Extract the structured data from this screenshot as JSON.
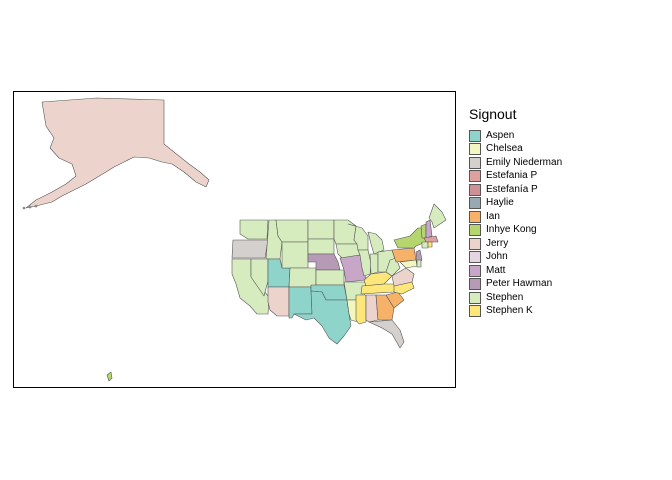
{
  "legend": {
    "title": "Signout",
    "items": [
      {
        "label": "Aspen",
        "color": "#8fd4cb"
      },
      {
        "label": "Chelsea",
        "color": "#f2f7c1"
      },
      {
        "label": "Emily Niederman",
        "color": "#d3d0cd"
      },
      {
        "label": "Estefania P",
        "color": "#dfa0a0"
      },
      {
        "label": "Estefanía P",
        "color": "#cf8f96"
      },
      {
        "label": "Haylie",
        "color": "#97aab4"
      },
      {
        "label": "Ian",
        "color": "#f7b26a"
      },
      {
        "label": "Inhye Kong",
        "color": "#b5d56f"
      },
      {
        "label": "Jerry",
        "color": "#ecd3cb"
      },
      {
        "label": "John",
        "color": "#e3d5e1"
      },
      {
        "label": "Matt",
        "color": "#c7a6c8"
      },
      {
        "label": "Peter Hawman",
        "color": "#b79ab6"
      },
      {
        "label": "Stephen",
        "color": "#d6ecbf"
      },
      {
        "label": "Stephen K",
        "color": "#fde77a"
      }
    ]
  },
  "map": {
    "border_color": "#555555",
    "regions": {
      "alaska": "Jerry",
      "hawaii": "Inhye Kong",
      "washington": "Stephen",
      "oregon": "Emily Niederman",
      "california": "Stephen",
      "idaho": "Stephen",
      "nevada": "Stephen",
      "utah": "Aspen",
      "arizona": "Jerry",
      "montana": "Stephen",
      "wyoming": "Stephen",
      "colorado": "Stephen",
      "new_mexico": "Aspen",
      "north_dakota": "Stephen",
      "south_dakota": "Stephen",
      "nebraska": "Peter Hawman",
      "kansas": "Stephen",
      "oklahoma": "Aspen",
      "texas": "Aspen",
      "minnesota": "Stephen",
      "iowa": "Stephen",
      "missouri": "Matt",
      "arkansas": "Stephen",
      "louisiana": "Chelsea",
      "wisconsin": "Stephen",
      "illinois": "Stephen",
      "michigan": "Stephen",
      "indiana": "Stephen",
      "ohio": "Stephen",
      "kentucky": "Stephen K",
      "tennessee": "Stephen K",
      "mississippi": "Stephen K",
      "alabama": "Jerry",
      "georgia": "Ian",
      "florida": "Emily Niederman",
      "south_carolina": "Ian",
      "north_carolina": "Stephen K",
      "virginia": "Jerry",
      "west_virginia": "Stephen",
      "pennsylvania": "Ian",
      "new_york": "Inhye Kong",
      "new_jersey": "Peter Hawman",
      "maryland": "Chelsea",
      "vermont": "Inhye Kong",
      "new_hampshire": "Matt",
      "maine": "Stephen",
      "massachusetts": "Estefania P",
      "connecticut": "Stephen",
      "rhode_island": "Stephen K",
      "delaware": "Stephen"
    }
  }
}
